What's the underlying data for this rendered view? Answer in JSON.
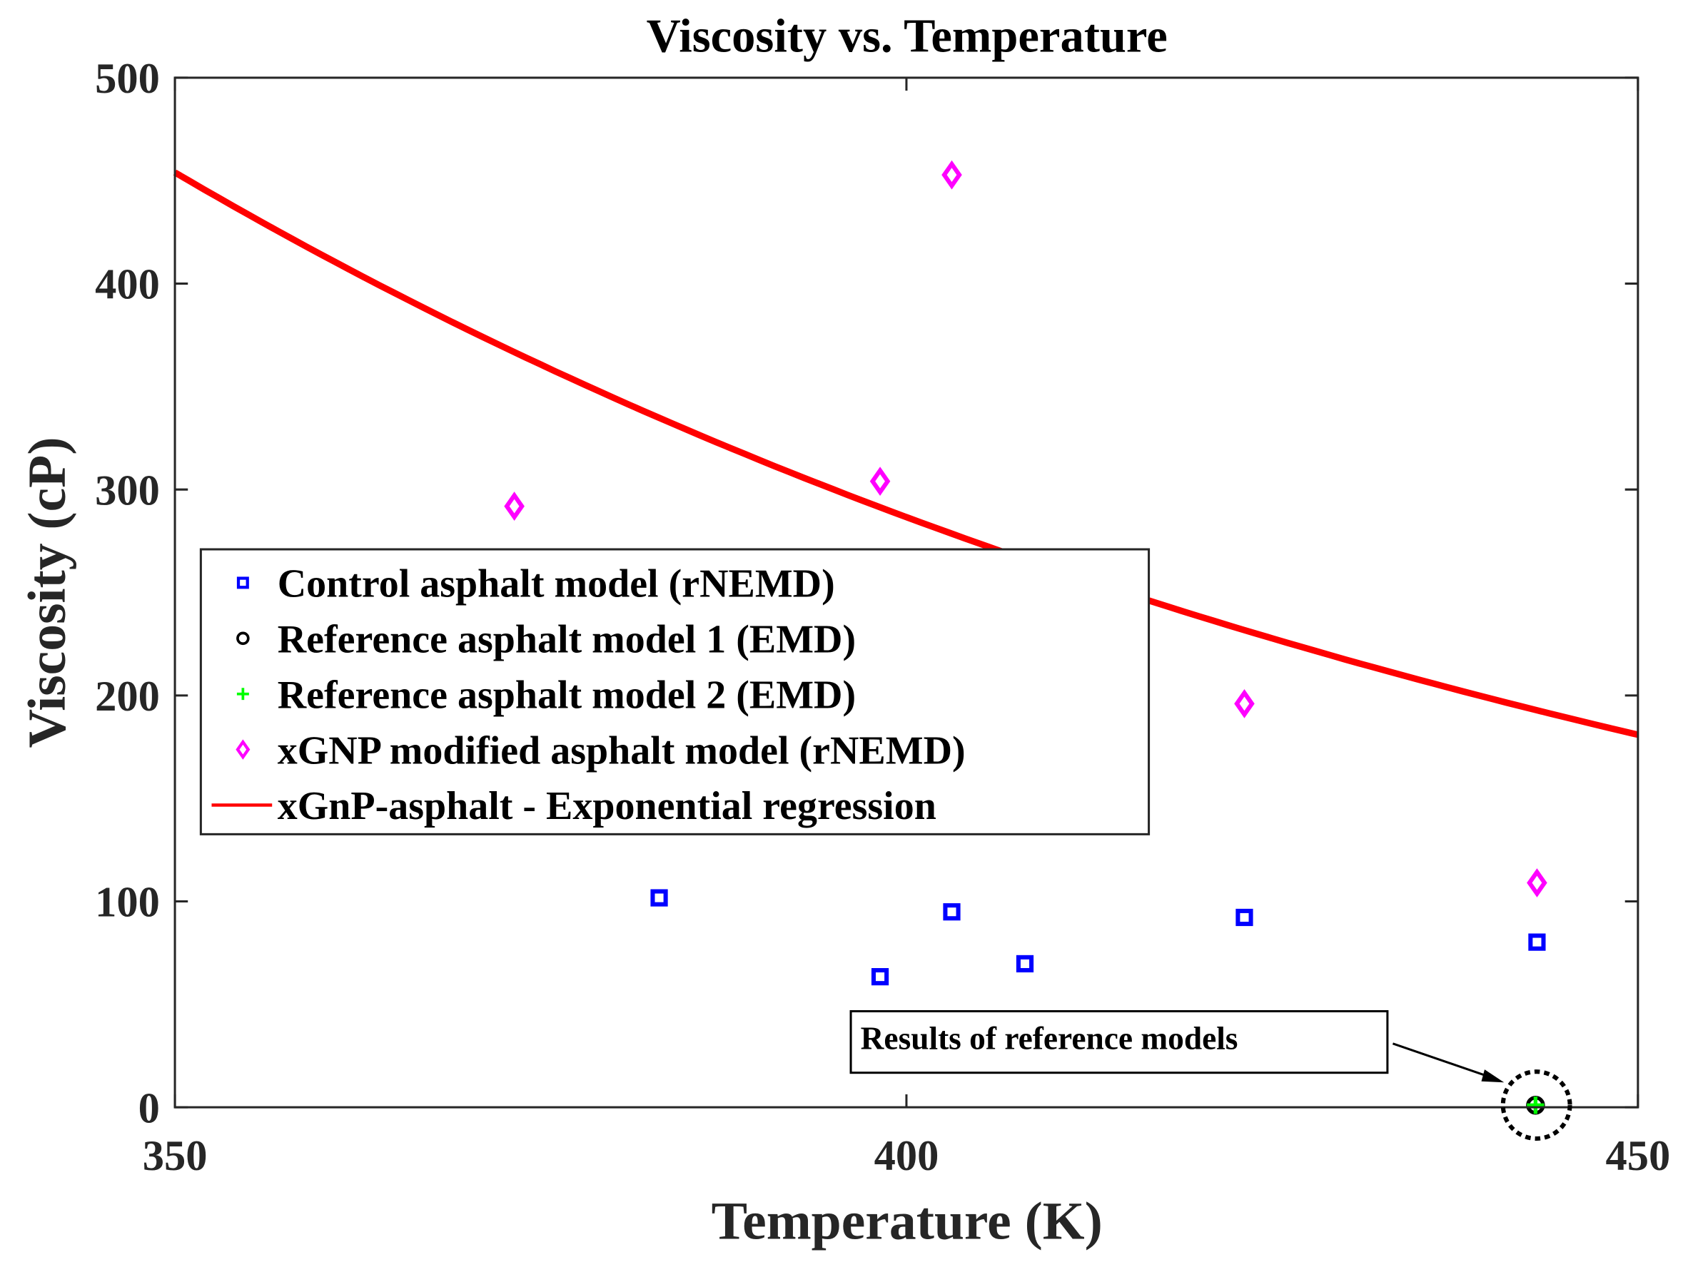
{
  "chart_data": {
    "type": "scatter",
    "title": "Viscosity vs. Temperature",
    "xlabel": "Temperature (K)",
    "ylabel": "Viscosity (cP)",
    "xlim": [
      350,
      450
    ],
    "ylim": [
      0,
      500
    ],
    "xticks": [
      "350",
      "400",
      "450"
    ],
    "yticks": [
      "0",
      "100",
      "200",
      "300",
      "400",
      "500"
    ],
    "grid": false,
    "legend_position": "center-left",
    "series": [
      {
        "name": "Control asphalt model (rNEMD)",
        "marker": "square",
        "color": "#0000ff",
        "x": [
          383.1,
          398.2,
          403.1,
          408.1,
          423.1,
          443.1
        ],
        "y": [
          101.7,
          63.4,
          94.9,
          69.7,
          92.2,
          80.2
        ]
      },
      {
        "name": "Reference asphalt model 1 (EMD)",
        "marker": "circle",
        "color": "#000000",
        "x": [
          443.0
        ],
        "y": [
          1.0
        ]
      },
      {
        "name": "Reference asphalt model 2 (EMD)",
        "marker": "plus",
        "color": "#00ff00",
        "x": [
          443.0
        ],
        "y": [
          1.0
        ]
      },
      {
        "name": "xGNP modified asphalt model (rNEMD)",
        "marker": "diamond",
        "color": "#ff00ff",
        "x": [
          373.2,
          398.2,
          403.1,
          423.1,
          443.1
        ],
        "y": [
          291.9,
          304.0,
          452.8,
          196.0,
          109.0
        ]
      },
      {
        "name": "xGnP-asphalt - Exponential regression",
        "marker": "line",
        "color": "#ff0000",
        "fit": {
          "form": "a*exp(-b*(T-350))",
          "a": 454,
          "b": 0.0092
        }
      }
    ],
    "annotation": {
      "text": "Results of reference models",
      "points_to": [
        443.0,
        1.0
      ]
    }
  }
}
